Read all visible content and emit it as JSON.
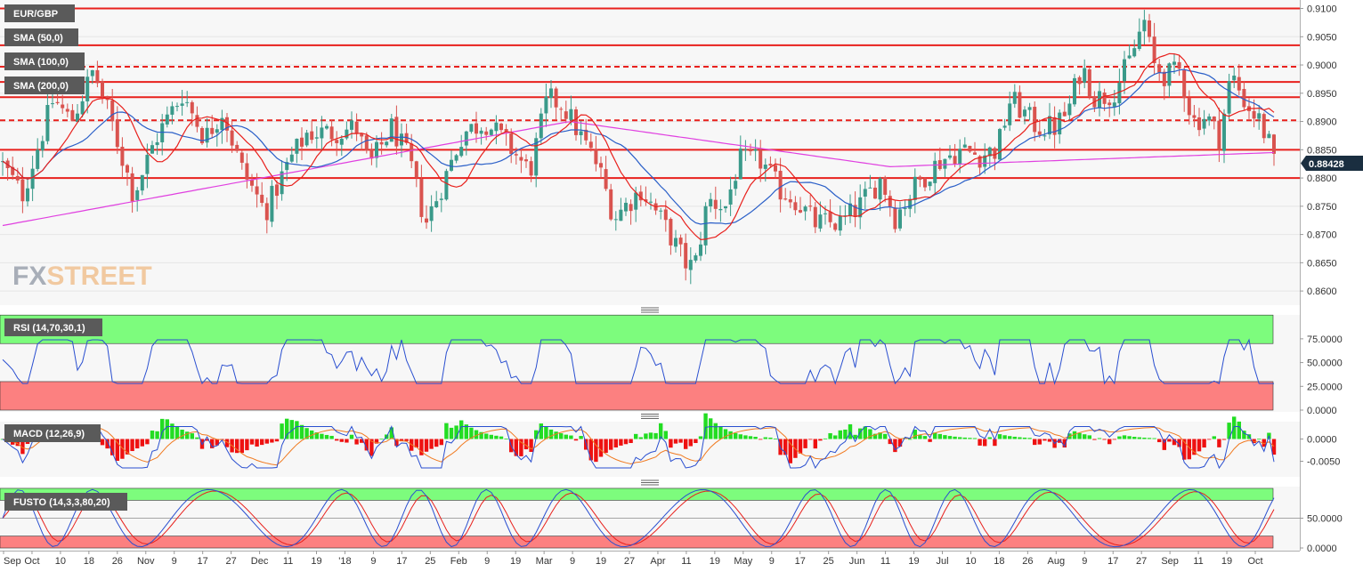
{
  "colors": {
    "up": "#3a9a8a",
    "down": "#d9534f",
    "level": "#e8201c",
    "sma50": "#e8201c",
    "sma100": "#2a5fc8",
    "sma200": "#e040e0",
    "rsi_line": "#2a4fd0",
    "macd_line": "#2a4fd0",
    "signal_line": "#f07a20",
    "hist_pos": "#22dd22",
    "hist_neg": "#ee1111",
    "band_high": "#7dfc7d",
    "band_low": "#fc8080",
    "price_tag": "#1a2e40",
    "fusto_k": "#2a4fd0",
    "fusto_d": "#e8201c"
  },
  "brand": {
    "fx": "FX",
    "street": "STREET"
  },
  "chart_data": [
    {
      "name": "EUR/GBP",
      "type": "candlestick",
      "labels": [
        "EUR/GBP",
        "SMA (50,0)",
        "SMA (100,0)",
        "SMA (200,0)"
      ],
      "ylim": [
        0.8575,
        0.9115
      ],
      "y_ticks": [
        "0.9100",
        "0.9050",
        "0.9000",
        "0.8950",
        "0.8900",
        "0.8850",
        "0.8800",
        "0.8750",
        "0.8700",
        "0.8650",
        "0.8600"
      ],
      "last_price": "0.88428",
      "solid_levels": [
        0.91,
        0.9035,
        0.897,
        0.8943,
        0.885,
        0.88
      ],
      "dashed_levels": [
        0.8997,
        0.8902
      ]
    },
    {
      "name": "RSI",
      "type": "line",
      "labels": [
        "RSI (14,70,30,1)"
      ],
      "ylim": [
        0,
        100
      ],
      "y_ticks": [
        "75.0000",
        "50.0000",
        "25.0000",
        "0.0000"
      ],
      "bands": {
        "upper": 70,
        "lower": 30
      }
    },
    {
      "name": "MACD",
      "type": "line",
      "labels": [
        "MACD (12,26,9)"
      ],
      "y_ticks": [
        "0.0000",
        "-0.0050"
      ]
    },
    {
      "name": "FUSTO",
      "type": "line",
      "labels": [
        "FUSTO (14,3,3,80,20)"
      ],
      "ylim": [
        0,
        100
      ],
      "y_ticks": [
        "50.0000",
        "0.0000"
      ],
      "bands": {
        "upper": 80,
        "lower": 20
      }
    }
  ],
  "x_axis": {
    "labels": [
      "Sep",
      "Oct",
      "10",
      "18",
      "26",
      "Nov",
      "9",
      "17",
      "27",
      "Dec",
      "11",
      "19",
      "'18",
      "9",
      "17",
      "25",
      "Feb",
      "9",
      "19",
      "Mar",
      "9",
      "19",
      "27",
      "Apr",
      "11",
      "19",
      "May",
      "9",
      "17",
      "25",
      "Jun",
      "11",
      "19",
      "Jul",
      "10",
      "18",
      "26",
      "Aug",
      "9",
      "17",
      "27",
      "Sep",
      "11",
      "19",
      "Oct"
    ]
  }
}
